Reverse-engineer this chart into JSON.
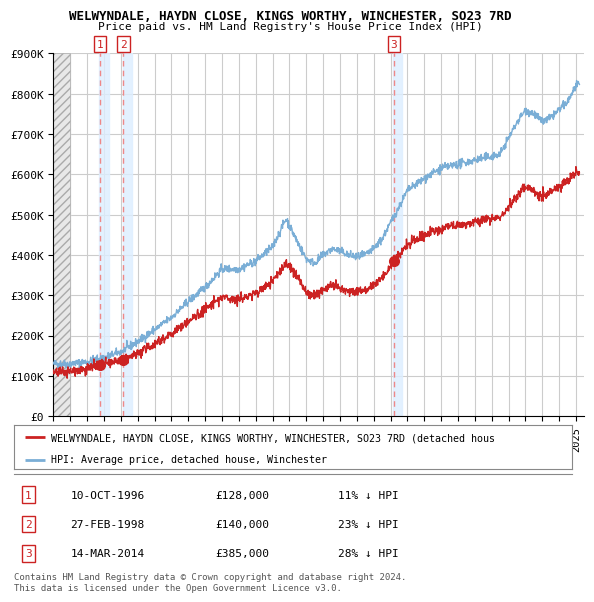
{
  "title": "WELWYNDALE, HAYDN CLOSE, KINGS WORTHY, WINCHESTER, SO23 7RD",
  "subtitle": "Price paid vs. HM Land Registry's House Price Index (HPI)",
  "ylim": [
    0,
    900000
  ],
  "yticks": [
    0,
    100000,
    200000,
    300000,
    400000,
    500000,
    600000,
    700000,
    800000,
    900000
  ],
  "ytick_labels": [
    "£0",
    "£100K",
    "£200K",
    "£300K",
    "£400K",
    "£500K",
    "£600K",
    "£700K",
    "£800K",
    "£900K"
  ],
  "hpi_color": "#7aaed6",
  "price_color": "#cc2222",
  "vline_color": "#ee8888",
  "shade_color": "#ddeeff",
  "hatch_color": "#cccccc",
  "sales": [
    {
      "date": 1996.78,
      "price": 128000,
      "label": "1"
    },
    {
      "date": 1998.15,
      "price": 140000,
      "label": "2"
    },
    {
      "date": 2014.2,
      "price": 385000,
      "label": "3"
    }
  ],
  "legend_price_label": "WELWYNDALE, HAYDN CLOSE, KINGS WORTHY, WINCHESTER, SO23 7RD (detached hous",
  "legend_hpi_label": "HPI: Average price, detached house, Winchester",
  "table": [
    {
      "num": "1",
      "date": "10-OCT-1996",
      "price": "£128,000",
      "note": "11% ↓ HPI"
    },
    {
      "num": "2",
      "date": "27-FEB-1998",
      "price": "£140,000",
      "note": "23% ↓ HPI"
    },
    {
      "num": "3",
      "date": "14-MAR-2014",
      "price": "£385,000",
      "note": "28% ↓ HPI"
    }
  ],
  "footer": "Contains HM Land Registry data © Crown copyright and database right 2024.\nThis data is licensed under the Open Government Licence v3.0.",
  "background_color": "#ffffff",
  "plot_bg_color": "#ffffff",
  "grid_color": "#cccccc",
  "xstart": 1994.0,
  "xend": 2025.5
}
